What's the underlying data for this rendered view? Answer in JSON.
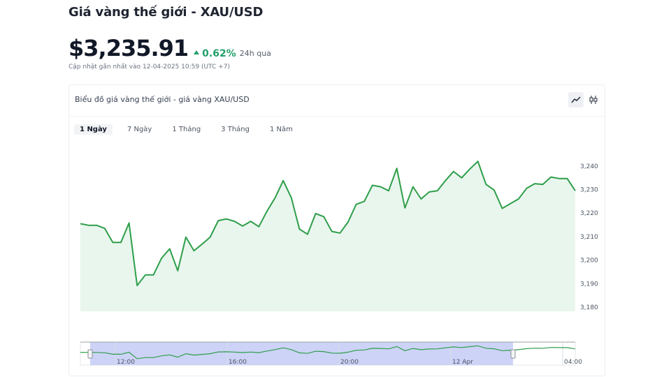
{
  "header": {
    "title": "Giá vàng thế giới - XAU/USD",
    "price": "$3,235.91",
    "change": "0.62%",
    "period": "24h qua",
    "updated": "Cập nhật gần nhất vào 12-04-2025 10:59 (UTC +7)"
  },
  "card": {
    "title": "Biểu đồ giá vàng thế giới - giá vàng XAU/USD",
    "views": [
      "line-chart-icon",
      "candlestick-icon"
    ],
    "active_view": "line-chart-icon",
    "range_tabs": [
      "1 Ngày",
      "7 Ngày",
      "1 Tháng",
      "3 Tháng",
      "1 Năm"
    ],
    "active_range": "1 Ngày"
  },
  "colors": {
    "line": "#2e9e4a",
    "area": "#e9f6ee",
    "up": "#22a06b",
    "navigator_window": "#c8cef6"
  },
  "chart_data": {
    "type": "area",
    "ylim": [
      3180,
      3243
    ],
    "yticks": [
      3180,
      3190,
      3200,
      3210,
      3220,
      3230,
      3240
    ],
    "ytick_labels": [
      "3,180",
      "3,190",
      "3,200",
      "3,210",
      "3,220",
      "3,230",
      "3,240"
    ],
    "y_axis_position": "right",
    "grid": false,
    "legend": "none",
    "values": [
      3215.5,
      3214.8,
      3214.8,
      3213.5,
      3207.5,
      3207.5,
      3215.8,
      3189.2,
      3193.7,
      3193.7,
      3200.8,
      3204.8,
      3195.5,
      3209.8,
      3204.0,
      3206.8,
      3209.8,
      3216.8,
      3217.5,
      3216.5,
      3214.5,
      3216.5,
      3214.2,
      3220.8,
      3226.5,
      3233.8,
      3226.5,
      3213.2,
      3211.0,
      3219.8,
      3218.5,
      3212.2,
      3211.5,
      3216.2,
      3223.7,
      3225.0,
      3231.8,
      3231.2,
      3229.5,
      3239.0,
      3222.2,
      3231.2,
      3226.0,
      3229.0,
      3229.5,
      3233.8,
      3237.7,
      3235.0,
      3238.7,
      3242.0,
      3232.2,
      3229.8,
      3222.0,
      3224.0,
      3226.0,
      3230.5,
      3232.5,
      3232.2,
      3235.3,
      3234.7,
      3234.7,
      3229.5
    ],
    "navigator": {
      "xtick_labels": [
        "12:00",
        "16:00",
        "20:00",
        "12 Apr",
        "04:00"
      ]
    }
  }
}
